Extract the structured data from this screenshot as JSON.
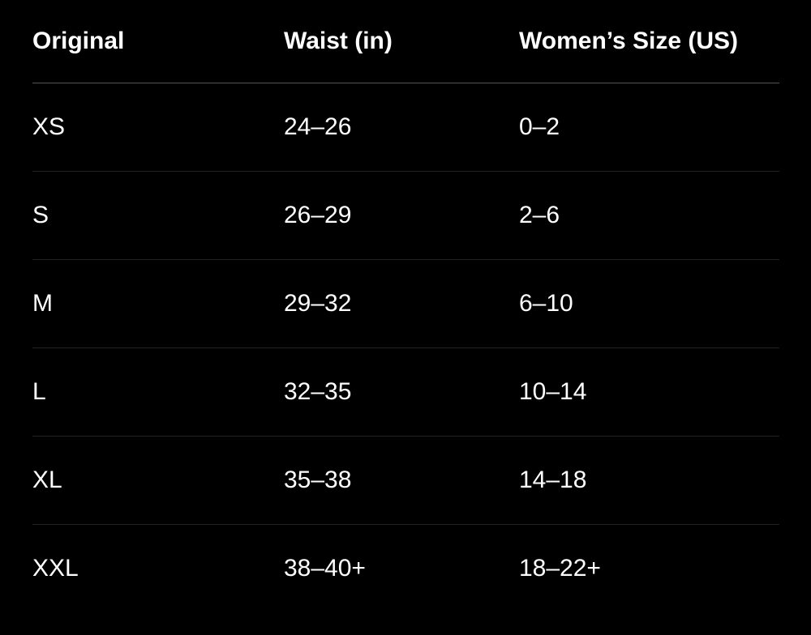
{
  "table": {
    "headers": [
      "Original",
      "Waist (in)",
      "Women’s Size (US)"
    ],
    "rows": [
      [
        "XS",
        "24–26",
        "0–2"
      ],
      [
        "S",
        "26–29",
        "2–6"
      ],
      [
        "M",
        "29–32",
        "6–10"
      ],
      [
        "L",
        "32–35",
        "10–14"
      ],
      [
        "XL",
        "35–38",
        "14–18"
      ],
      [
        "XXL",
        "38–40+",
        "18–22+"
      ]
    ]
  },
  "colors": {
    "background": "#000000",
    "text": "#ffffff",
    "header_rule": "#555555",
    "row_rule": "#222222"
  }
}
